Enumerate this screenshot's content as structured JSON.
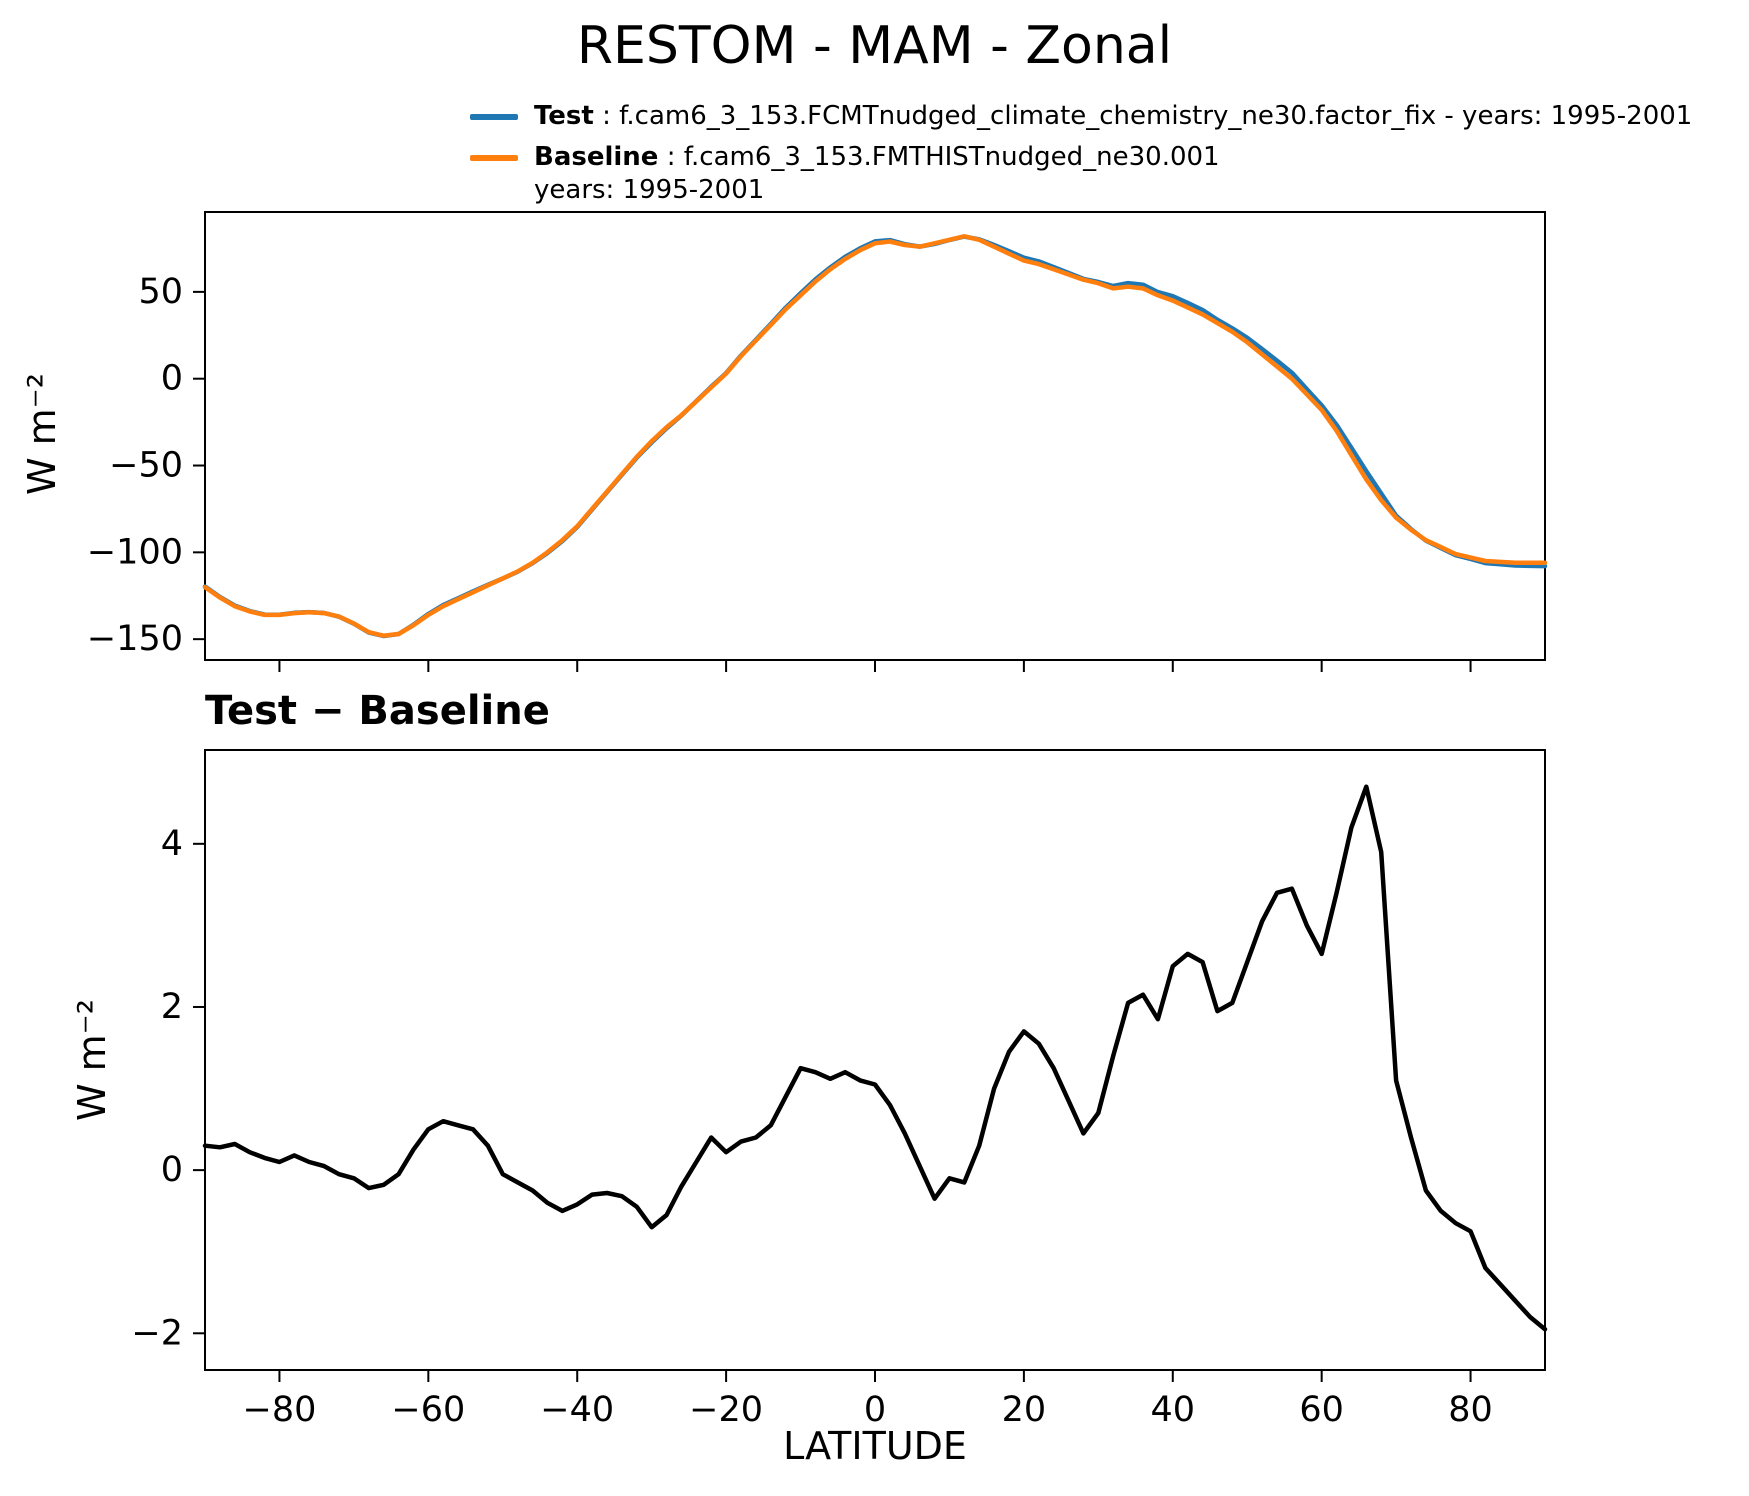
{
  "title": "RESTOM - MAM - Zonal",
  "legend": {
    "entries": [
      {
        "label": "Test",
        "desc": " : f.cam6_3_153.FCMTnudged_climate_chemistry_ne30.factor_fix - years: 1995-2001",
        "desc2": "",
        "color": "#1f77b4"
      },
      {
        "label": "Baseline",
        "desc": " : f.cam6_3_153.FMTHISTnudged_ne30.001",
        "desc2": "years: 1995-2001",
        "color": "#ff7f0e"
      }
    ]
  },
  "chart_data": [
    {
      "type": "line",
      "title": "RESTOM - MAM - Zonal",
      "ylabel": "W m⁻²",
      "xlabel": "",
      "xlim": [
        -90,
        90
      ],
      "ylim": [
        -162,
        96
      ],
      "yticks": [
        50,
        0,
        -50,
        -100,
        -150
      ],
      "xticks": [
        -80,
        -60,
        -40,
        -20,
        0,
        20,
        40,
        60,
        80
      ],
      "xtick_labels_visible": false,
      "grid": false,
      "legend_position": "above-top-left",
      "x": [
        -90,
        -88,
        -86,
        -84,
        -82,
        -80,
        -78,
        -76,
        -74,
        -72,
        -70,
        -68,
        -66,
        -64,
        -62,
        -60,
        -58,
        -56,
        -54,
        -52,
        -50,
        -48,
        -46,
        -44,
        -42,
        -40,
        -38,
        -36,
        -34,
        -32,
        -30,
        -28,
        -26,
        -24,
        -22,
        -20,
        -18,
        -16,
        -14,
        -12,
        -10,
        -8,
        -6,
        -4,
        -2,
        0,
        2,
        4,
        6,
        8,
        10,
        12,
        14,
        16,
        18,
        20,
        22,
        24,
        26,
        28,
        30,
        32,
        34,
        36,
        38,
        40,
        42,
        44,
        46,
        48,
        50,
        52,
        54,
        56,
        58,
        60,
        62,
        64,
        66,
        68,
        70,
        72,
        74,
        76,
        78,
        80,
        82,
        84,
        86,
        88,
        90
      ],
      "series": [
        {
          "name": "Test",
          "color": "#1f77b4",
          "values": [
            -119.7,
            -125.72,
            -130.68,
            -133.78,
            -135.85,
            -135.9,
            -134.82,
            -134.4,
            -134.95,
            -137.05,
            -141.1,
            -146.22,
            -148.18,
            -147.05,
            -141.75,
            -135.5,
            -130.4,
            -126.45,
            -122.5,
            -118.7,
            -115.05,
            -111.15,
            -106.25,
            -100.4,
            -93.5,
            -85.42,
            -75.3,
            -65.28,
            -55.32,
            -45.45,
            -36.7,
            -28.55,
            -21.2,
            -12.9,
            -4.6,
            3.22,
            13.35,
            22.4,
            31.55,
            40.9,
            49.25,
            57.2,
            64.12,
            70.2,
            75.1,
            79.05,
            79.8,
            77.45,
            76.05,
            77.65,
            79.9,
            81.85,
            80.3,
            77.0,
            73.45,
            69.7,
            67.55,
            64.25,
            60.85,
            57.45,
            55.7,
            53.4,
            55.05,
            54.15,
            49.85,
            47.5,
            43.65,
            39.55,
            33.95,
            29.05,
            23.55,
            17.05,
            10.4,
            3.45,
            -6.0,
            -15.35,
            -26.6,
            -39.8,
            -53.3,
            -66.1,
            -78.9,
            -86.6,
            -93.25,
            -97.5,
            -101.65,
            -103.75,
            -106.2,
            -106.9,
            -107.6,
            -107.8,
            -107.95
          ]
        },
        {
          "name": "Baseline",
          "color": "#ff7f0e",
          "values": [
            -120,
            -126,
            -131,
            -134,
            -136,
            -136,
            -135,
            -134.5,
            -135,
            -137,
            -141,
            -146,
            -148,
            -147,
            -142,
            -136,
            -131,
            -127,
            -123,
            -119,
            -115,
            -111,
            -106,
            -100,
            -93,
            -85,
            -75,
            -65,
            -55,
            -45,
            -36,
            -28,
            -21,
            -13,
            -5,
            3,
            13,
            22,
            31,
            40,
            48,
            56,
            63,
            69,
            74,
            78,
            79,
            77,
            76,
            78,
            80,
            82,
            80,
            76,
            72,
            68,
            66,
            63,
            60,
            57,
            55,
            52,
            53,
            52,
            48,
            45,
            41,
            37,
            32,
            27,
            21,
            14,
            7,
            0,
            -9,
            -18,
            -30,
            -44,
            -58,
            -70,
            -80,
            -87,
            -93,
            -97,
            -101,
            -103,
            -105,
            -105.5,
            -106,
            -106,
            -106
          ]
        }
      ]
    },
    {
      "type": "line",
      "title": "Test − Baseline",
      "ylabel": "W m⁻²",
      "xlabel": "LATITUDE",
      "xlim": [
        -90,
        90
      ],
      "ylim": [
        -2.45,
        5.15
      ],
      "yticks": [
        4,
        2,
        0,
        -2
      ],
      "xticks": [
        -80,
        -60,
        -40,
        -20,
        0,
        20,
        40,
        60,
        80
      ],
      "xtick_labels_visible": true,
      "grid": false,
      "x": [
        -90,
        -88,
        -86,
        -84,
        -82,
        -80,
        -78,
        -76,
        -74,
        -72,
        -70,
        -68,
        -66,
        -64,
        -62,
        -60,
        -58,
        -56,
        -54,
        -52,
        -50,
        -48,
        -46,
        -44,
        -42,
        -40,
        -38,
        -36,
        -34,
        -32,
        -30,
        -28,
        -26,
        -24,
        -22,
        -20,
        -18,
        -16,
        -14,
        -12,
        -10,
        -8,
        -6,
        -4,
        -2,
        0,
        2,
        4,
        6,
        8,
        10,
        12,
        14,
        16,
        18,
        20,
        22,
        24,
        26,
        28,
        30,
        32,
        34,
        36,
        38,
        40,
        42,
        44,
        46,
        48,
        50,
        52,
        54,
        56,
        58,
        60,
        62,
        64,
        66,
        68,
        70,
        72,
        74,
        76,
        78,
        80,
        82,
        84,
        86,
        88,
        90
      ],
      "series": [
        {
          "name": "Test − Baseline",
          "color": "#000000",
          "values": [
            0.3,
            0.28,
            0.32,
            0.22,
            0.15,
            0.1,
            0.18,
            0.1,
            0.05,
            -0.05,
            -0.1,
            -0.22,
            -0.18,
            -0.05,
            0.25,
            0.5,
            0.6,
            0.55,
            0.5,
            0.3,
            -0.05,
            -0.15,
            -0.25,
            -0.4,
            -0.5,
            -0.42,
            -0.3,
            -0.28,
            -0.32,
            -0.45,
            -0.7,
            -0.55,
            -0.2,
            0.1,
            0.4,
            0.22,
            0.35,
            0.4,
            0.55,
            0.9,
            1.25,
            1.2,
            1.12,
            1.2,
            1.1,
            1.05,
            0.8,
            0.45,
            0.05,
            -0.35,
            -0.1,
            -0.15,
            0.3,
            1.0,
            1.45,
            1.7,
            1.55,
            1.25,
            0.85,
            0.45,
            0.7,
            1.4,
            2.05,
            2.15,
            1.85,
            2.5,
            2.65,
            2.55,
            1.95,
            2.05,
            2.55,
            3.05,
            3.4,
            3.45,
            3.0,
            2.65,
            3.4,
            4.2,
            4.7,
            3.9,
            1.1,
            0.4,
            -0.25,
            -0.5,
            -0.65,
            -0.75,
            -1.2,
            -1.4,
            -1.6,
            -1.8,
            -1.95
          ]
        }
      ]
    }
  ]
}
